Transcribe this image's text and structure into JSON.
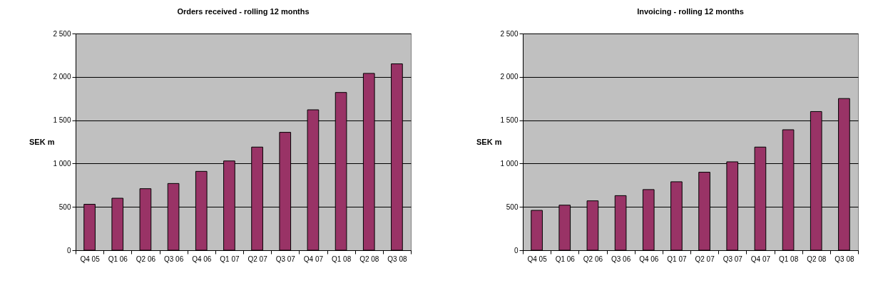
{
  "chart_data": [
    {
      "type": "bar",
      "title": "Orders received - rolling 12 months",
      "ylabel": "SEK m",
      "categories": [
        "Q4 05",
        "Q1 06",
        "Q2 06",
        "Q3 06",
        "Q4 06",
        "Q1 07",
        "Q2 07",
        "Q3 07",
        "Q4 07",
        "Q1 08",
        "Q2 08",
        "Q3 08"
      ],
      "values": [
        530,
        600,
        710,
        770,
        910,
        1030,
        1190,
        1360,
        1620,
        1820,
        2040,
        2150
      ],
      "color": "#993366",
      "ylim": [
        0,
        2500
      ],
      "yticks": [
        {
          "value": 0,
          "label": "0"
        },
        {
          "value": 500,
          "label": "500"
        },
        {
          "value": 1000,
          "label": "1 000"
        },
        {
          "value": 1500,
          "label": "1 500"
        },
        {
          "value": 2000,
          "label": "2 000"
        },
        {
          "value": 2500,
          "label": "2 500"
        }
      ],
      "grid": "y"
    },
    {
      "type": "bar",
      "title": "Invoicing - rolling 12 months",
      "ylabel": "SEK m",
      "categories": [
        "Q4 05",
        "Q1 06",
        "Q2 06",
        "Q3 06",
        "Q4 06",
        "Q1 07",
        "Q2 07",
        "Q3 07",
        "Q4 07",
        "Q1 08",
        "Q2 08",
        "Q3 08"
      ],
      "values": [
        460,
        520,
        570,
        630,
        700,
        790,
        900,
        1020,
        1190,
        1390,
        1600,
        1750
      ],
      "color": "#993366",
      "ylim": [
        0,
        2500
      ],
      "yticks": [
        {
          "value": 0,
          "label": "0"
        },
        {
          "value": 500,
          "label": "500"
        },
        {
          "value": 1000,
          "label": "1 000"
        },
        {
          "value": 1500,
          "label": "1 500"
        },
        {
          "value": 2000,
          "label": "2 000"
        },
        {
          "value": 2500,
          "label": "2 500"
        }
      ],
      "grid": "y"
    }
  ]
}
